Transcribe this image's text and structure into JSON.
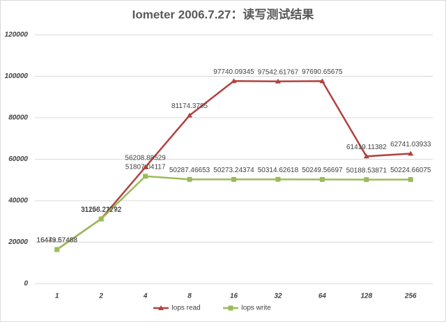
{
  "chart_data": {
    "type": "line",
    "title": "Iometer 2006.7.27：读写测试结果",
    "categories": [
      "1",
      "2",
      "4",
      "8",
      "16",
      "32",
      "64",
      "128",
      "256"
    ],
    "series": [
      {
        "name": "Iops read",
        "color": "#b0423f",
        "marker": "triangle",
        "values": [
          16449.57483,
          31258.21792,
          56208.88529,
          81174.3785,
          97740.09345,
          97542.61767,
          97690.65675,
          61419.11382,
          62741.03933
        ]
      },
      {
        "name": "Iops write",
        "color": "#9bbb59",
        "marker": "square",
        "values": [
          16473.67488,
          31196.27272,
          51807.04117,
          50287.46653,
          50273.24374,
          50314.62618,
          50249.56697,
          50188.53871,
          50224.66075
        ]
      }
    ],
    "ylim": [
      0,
      120000
    ],
    "yticks": [
      0,
      20000,
      40000,
      60000,
      80000,
      100000,
      120000
    ],
    "grid": true,
    "legend": "bottom"
  }
}
